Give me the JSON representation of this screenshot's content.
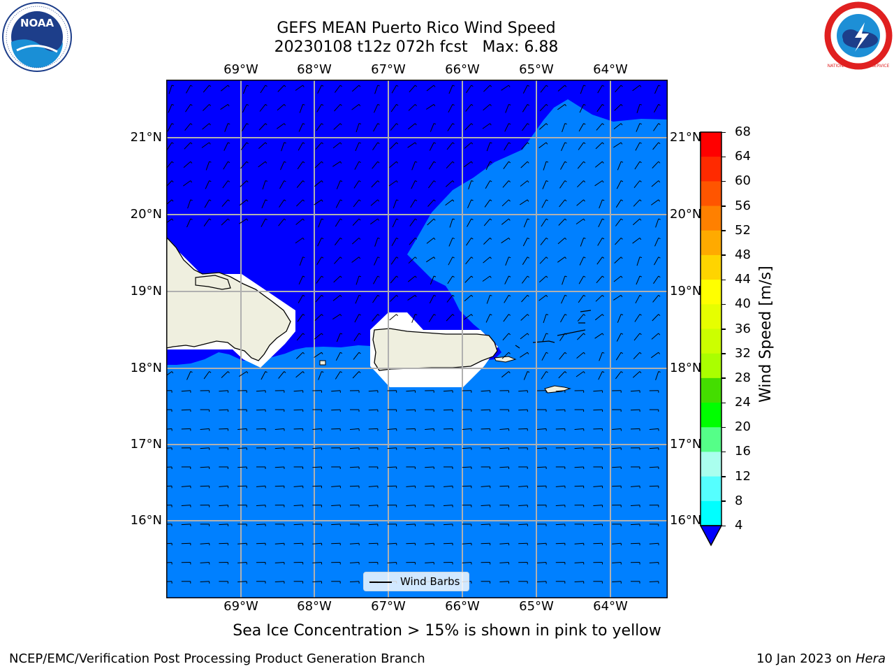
{
  "title": {
    "line1": "GEFS MEAN Puerto Rico Wind Speed",
    "line2": "20230108 t12z 072h fcst   Max: 6.88"
  },
  "lon_ticks": [
    "69°W",
    "68°W",
    "67°W",
    "66°W",
    "65°W",
    "64°W"
  ],
  "lat_ticks": [
    "21°N",
    "20°N",
    "19°N",
    "18°N",
    "17°N",
    "16°N"
  ],
  "colorbar": {
    "label": "Wind Speed [m/s]",
    "ticks": [
      "68",
      "64",
      "60",
      "56",
      "52",
      "48",
      "44",
      "40",
      "36",
      "32",
      "28",
      "24",
      "20",
      "16",
      "12",
      "8",
      "4"
    ],
    "colors": [
      "#ff0000",
      "#ff2a00",
      "#ff5500",
      "#ff8000",
      "#ffaa00",
      "#ffd400",
      "#ffff00",
      "#e6ff00",
      "#ccff00",
      "#aaff00",
      "#44dd00",
      "#00ff00",
      "#55ff88",
      "#aaffee",
      "#55ffff",
      "#00ffff",
      "#00ddff",
      "#0080ff"
    ],
    "extend_color": "#0000ff"
  },
  "legend": {
    "label": "Wind Barbs"
  },
  "caption": "Sea Ice Concentration > 15% is shown in pink to yellow",
  "footer": {
    "left": "NCEP/EMC/Verification Post Processing Product Generation Branch",
    "right_date": "10 Jan 2023 on ",
    "right_host": "Hera"
  },
  "logos": {
    "left": "NOAA",
    "right": "NATIONAL WEATHER SERVICE"
  },
  "map_colors": {
    "low_wind": "#0000ff",
    "mid_wind": "#0080ff",
    "land": "#efefdf",
    "grid": "#b0b0b0"
  }
}
